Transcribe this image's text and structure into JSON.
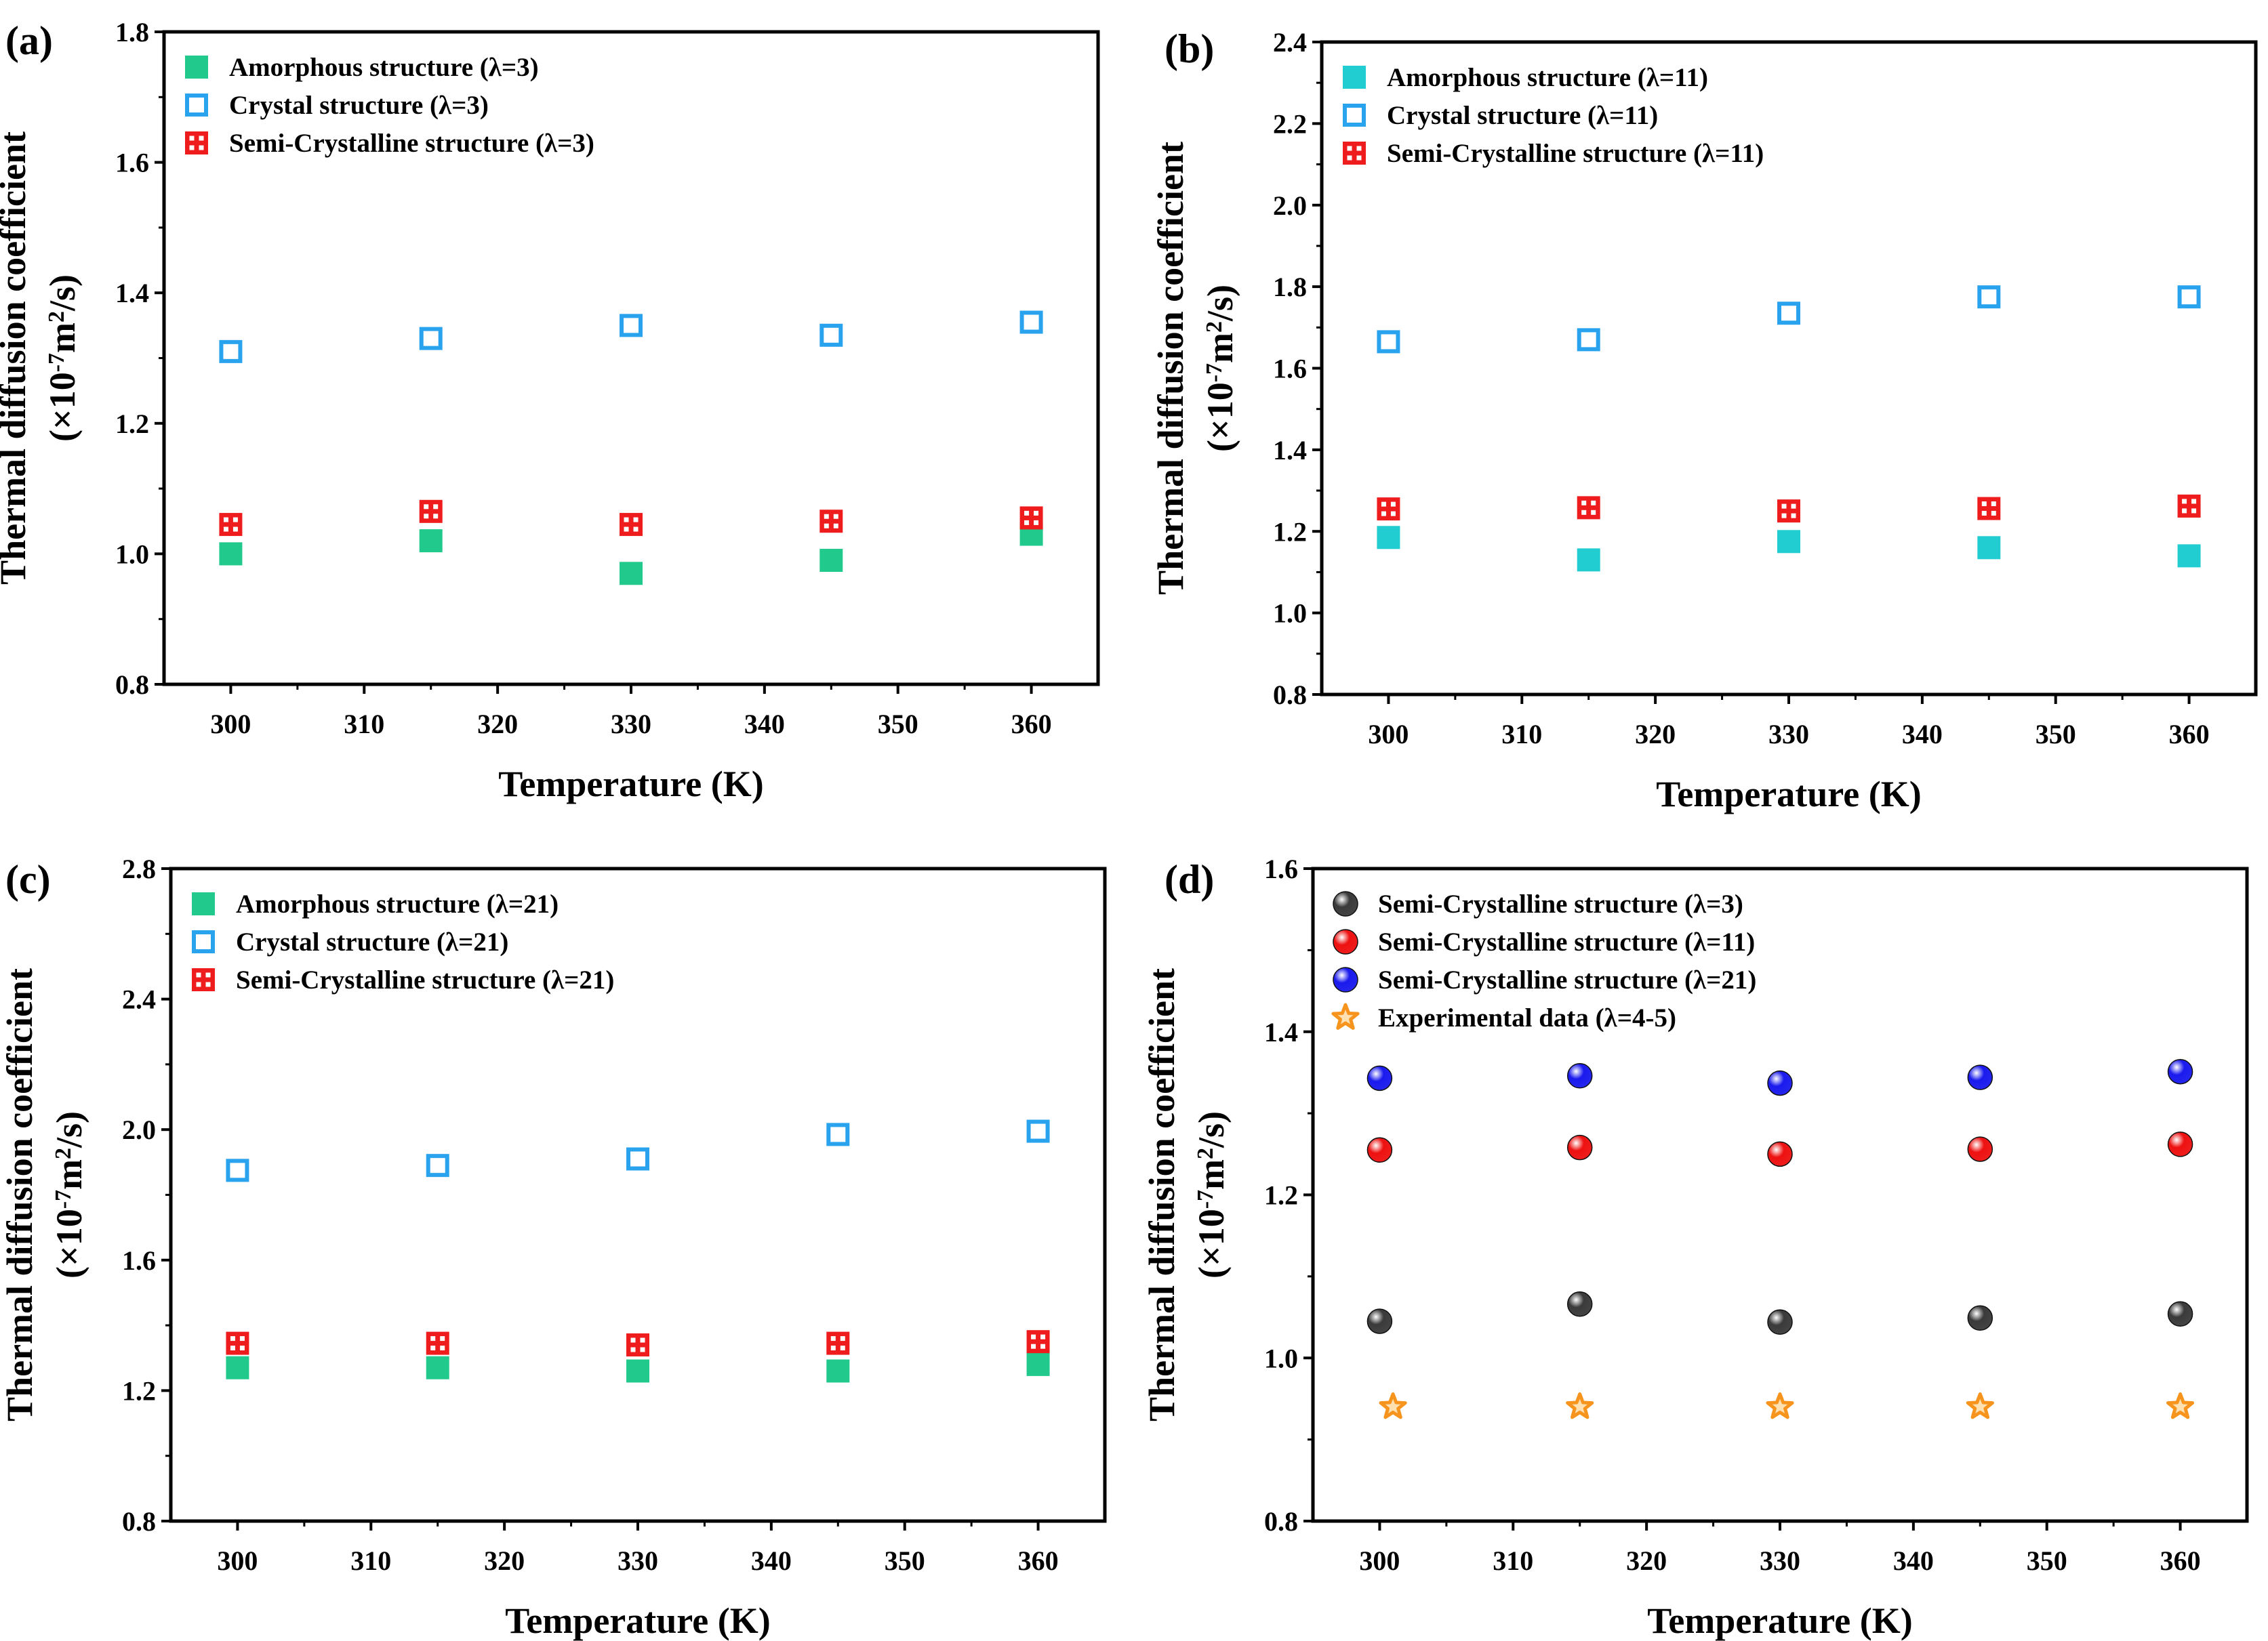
{
  "figure": {
    "background": "#ffffff"
  },
  "chart_data": [
    {
      "id": "a",
      "panel_label": "(a)",
      "type": "scatter",
      "xlabel": "Temperature (K)",
      "ylabel": {
        "line1": "Thermal diffusion coefficient",
        "prefix": "(×10",
        "exp1": "-7",
        "mid": "m",
        "exp2": "2",
        "suffix": "/s)"
      },
      "xlim": [
        295,
        365
      ],
      "ylim": [
        0.8,
        1.8
      ],
      "xticks": [
        300,
        310,
        320,
        330,
        340,
        350,
        360
      ],
      "yticks": [
        0.8,
        1.0,
        1.2,
        1.4,
        1.6,
        1.8
      ],
      "ytick_labels": [
        "0.8",
        "1.0",
        "1.2",
        "1.4",
        "1.6",
        "1.8"
      ],
      "x": [
        300,
        315,
        330,
        345,
        360
      ],
      "series": [
        {
          "name": "Amorphous structure (λ=3)",
          "marker": "square-filled",
          "color": "#21c98c",
          "values": [
            1.0,
            1.02,
            0.97,
            0.99,
            1.03
          ]
        },
        {
          "name": "Crystal structure (λ=3)",
          "marker": "square-open",
          "color": "#2aa3ef",
          "values": [
            1.31,
            1.33,
            1.35,
            1.335,
            1.355
          ]
        },
        {
          "name": "Semi-Crystalline structure (λ=3)",
          "marker": "square-dotted",
          "color": "#ee1c1c",
          "values": [
            1.045,
            1.065,
            1.045,
            1.05,
            1.055
          ]
        }
      ]
    },
    {
      "id": "b",
      "panel_label": "(b)",
      "type": "scatter",
      "xlabel": "Temperature (K)",
      "ylabel": {
        "line1": "Thermal diffusion coefficient",
        "prefix": "(×10",
        "exp1": "-7",
        "mid": "m",
        "exp2": "2",
        "suffix": "/s)"
      },
      "xlim": [
        295,
        365
      ],
      "ylim": [
        0.8,
        2.4
      ],
      "xticks": [
        300,
        310,
        320,
        330,
        340,
        350,
        360
      ],
      "yticks": [
        0.8,
        1.0,
        1.2,
        1.4,
        1.6,
        1.8,
        2.0,
        2.2,
        2.4
      ],
      "ytick_labels": [
        "0.8",
        "1.0",
        "1.2",
        "1.4",
        "1.6",
        "1.8",
        "2.0",
        "2.2",
        "2.4"
      ],
      "x": [
        300,
        315,
        330,
        345,
        360
      ],
      "series": [
        {
          "name": "Amorphous structure (λ=11)",
          "marker": "square-filled",
          "color": "#22cdd1",
          "values": [
            1.185,
            1.13,
            1.175,
            1.16,
            1.14
          ]
        },
        {
          "name": "Crystal structure (λ=11)",
          "marker": "square-open",
          "color": "#2aa3ef",
          "values": [
            1.665,
            1.67,
            1.735,
            1.775,
            1.775
          ]
        },
        {
          "name": "Semi-Crystalline structure (λ=11)",
          "marker": "square-dotted",
          "color": "#ee1c1c",
          "values": [
            1.255,
            1.258,
            1.25,
            1.256,
            1.262
          ]
        }
      ]
    },
    {
      "id": "c",
      "panel_label": "(c)",
      "type": "scatter",
      "xlabel": "Temperature (K)",
      "ylabel": {
        "line1": "Thermal diffusion coefficient",
        "prefix": "(×10",
        "exp1": "-7",
        "mid": "m",
        "exp2": "2",
        "suffix": "/s)"
      },
      "xlim": [
        295,
        365
      ],
      "ylim": [
        0.8,
        2.8
      ],
      "xticks": [
        300,
        310,
        320,
        330,
        340,
        350,
        360
      ],
      "yticks": [
        0.8,
        1.2,
        1.6,
        2.0,
        2.4,
        2.8
      ],
      "ytick_labels": [
        "0.8",
        "1.2",
        "1.6",
        "2.0",
        "2.4",
        "2.8"
      ],
      "x": [
        300,
        315,
        330,
        345,
        360
      ],
      "series": [
        {
          "name": "Amorphous structure (λ=21)",
          "marker": "square-filled",
          "color": "#21c98c",
          "values": [
            1.27,
            1.27,
            1.26,
            1.26,
            1.28
          ]
        },
        {
          "name": "Crystal structure (λ=21)",
          "marker": "square-open",
          "color": "#2aa3ef",
          "values": [
            1.875,
            1.89,
            1.91,
            1.985,
            1.995
          ]
        },
        {
          "name": "Semi-Crystalline structure (λ=21)",
          "marker": "square-dotted",
          "color": "#ee1c1c",
          "values": [
            1.345,
            1.345,
            1.34,
            1.345,
            1.35
          ]
        }
      ]
    },
    {
      "id": "d",
      "panel_label": "(d)",
      "type": "scatter",
      "xlabel": "Temperature (K)",
      "ylabel": {
        "line1": "Thermal diffusion coefficient",
        "prefix": "(×10",
        "exp1": "-7",
        "mid": "m",
        "exp2": "2",
        "suffix": "/s)"
      },
      "xlim": [
        295,
        365
      ],
      "ylim": [
        0.8,
        1.6
      ],
      "xticks": [
        300,
        310,
        320,
        330,
        340,
        350,
        360
      ],
      "yticks": [
        0.8,
        1.0,
        1.2,
        1.4,
        1.6
      ],
      "ytick_labels": [
        "0.8",
        "1.0",
        "1.2",
        "1.4",
        "1.6"
      ],
      "x": [
        300,
        315,
        330,
        345,
        360
      ],
      "series": [
        {
          "name": "Semi-Crystalline structure (λ=3)",
          "marker": "sphere",
          "color": "#3a3a3a",
          "values": [
            1.045,
            1.066,
            1.044,
            1.049,
            1.054
          ]
        },
        {
          "name": "Semi-Crystalline structure (λ=11)",
          "marker": "sphere",
          "color": "#ee1111",
          "values": [
            1.255,
            1.258,
            1.25,
            1.256,
            1.262
          ]
        },
        {
          "name": "Semi-Crystalline structure (λ=21)",
          "marker": "sphere",
          "color": "#1a1aee",
          "values": [
            1.343,
            1.346,
            1.337,
            1.344,
            1.351
          ]
        },
        {
          "name": "Experimental data (λ=4-5)",
          "marker": "star",
          "color": "#f7941d",
          "x": [
            301,
            315,
            330,
            345,
            360
          ],
          "values": [
            0.94,
            0.94,
            0.94,
            0.94,
            0.94
          ]
        }
      ]
    }
  ]
}
